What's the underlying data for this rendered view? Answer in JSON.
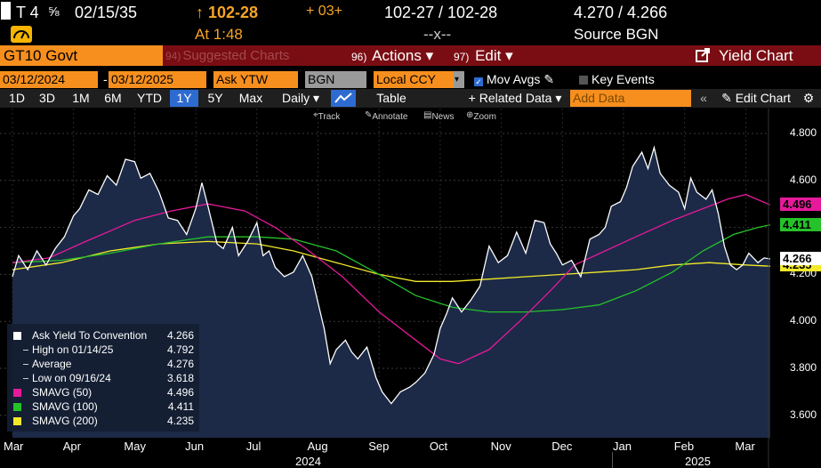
{
  "quote": {
    "ticker": "T 4",
    "coupon_frac": "⅝",
    "maturity": "02/15/35",
    "price": "102-28",
    "change": "+ 03+",
    "bid_ask": "102-27 / 102-28",
    "yields": "4.270 / 4.266",
    "time": "At 1:48",
    "mid_sep": "--x--",
    "source": "Source BGN"
  },
  "function_bar": {
    "security": "GT10 Govt",
    "suggested": "Suggested Charts",
    "actions_num": "96)",
    "actions": "Actions",
    "edit_num": "97)",
    "edit": "Edit",
    "title": "Yield Chart"
  },
  "controls": {
    "start_date": "03/12/2024",
    "dash": "-",
    "end_date": "03/12/2025",
    "field": "Ask YTW",
    "source": "BGN",
    "currency": "Local CCY",
    "mov_avgs": "Mov Avgs",
    "key_events": "Key Events"
  },
  "toolbar": {
    "periods": [
      "1D",
      "3D",
      "1M",
      "6M",
      "YTD",
      "1Y",
      "5Y",
      "Max"
    ],
    "selected_period": "1Y",
    "frequency": "Daily",
    "table": "Table",
    "related": "+ Related Data",
    "add_data_placeholder": "Add Data",
    "edit_chart": "Edit Chart"
  },
  "mini_tools": [
    "Track",
    "Annotate",
    "News",
    "Zoom"
  ],
  "legend": [
    {
      "name": "Ask Yield To Convention",
      "value": "4.266",
      "color": "#ffffff"
    },
    {
      "name": "High on 01/14/25",
      "value": "4.792",
      "color": "#ffffff"
    },
    {
      "name": "Average",
      "value": "4.276",
      "color": "#ffffff"
    },
    {
      "name": "Low on 09/16/24",
      "value": "3.618",
      "color": "#ffffff"
    },
    {
      "name": "SMAVG (50)",
      "value": "4.496",
      "color": "#e6199b"
    },
    {
      "name": "SMAVG (100)",
      "value": "4.411",
      "color": "#25c22a"
    },
    {
      "name": "SMAVG (200)",
      "value": "4.235",
      "color": "#f3ea2a"
    }
  ],
  "axis": {
    "y_ticks": [
      "4.800",
      "4.600",
      "4.400",
      "4.200",
      "4.000",
      "3.800",
      "3.600"
    ],
    "months": [
      "Mar",
      "Apr",
      "May",
      "Jun",
      "Jul",
      "Aug",
      "Sep",
      "Oct",
      "Nov",
      "Dec",
      "Jan",
      "Feb",
      "Mar"
    ],
    "years": [
      "2024",
      "2025"
    ],
    "last_labels": {
      "smavg50": "4.496",
      "smavg100": "4.411",
      "yield": "4.266",
      "smavg200": "4.235"
    }
  },
  "chart_data": {
    "type": "line",
    "x_unit": "months (0 = Mar 2024)",
    "ylim": [
      3.55,
      4.85
    ],
    "colors": {
      "yield": "#ffffff",
      "fill": "#1c2a47",
      "smavg50": "#e6199b",
      "smavg100": "#25c22a",
      "smavg200": "#f3ea2a"
    },
    "series": [
      {
        "name": "Ask Yield To Convention",
        "key": "yield",
        "points": [
          [
            0.0,
            4.19
          ],
          [
            0.1,
            4.28
          ],
          [
            0.25,
            4.22
          ],
          [
            0.4,
            4.3
          ],
          [
            0.55,
            4.24
          ],
          [
            0.7,
            4.31
          ],
          [
            0.85,
            4.36
          ],
          [
            1.0,
            4.45
          ],
          [
            1.1,
            4.48
          ],
          [
            1.25,
            4.56
          ],
          [
            1.4,
            4.54
          ],
          [
            1.55,
            4.62
          ],
          [
            1.7,
            4.58
          ],
          [
            1.85,
            4.69
          ],
          [
            2.0,
            4.68
          ],
          [
            2.1,
            4.61
          ],
          [
            2.25,
            4.63
          ],
          [
            2.4,
            4.55
          ],
          [
            2.55,
            4.44
          ],
          [
            2.7,
            4.43
          ],
          [
            2.85,
            4.37
          ],
          [
            3.0,
            4.48
          ],
          [
            3.1,
            4.59
          ],
          [
            3.2,
            4.49
          ],
          [
            3.35,
            4.33
          ],
          [
            3.45,
            4.31
          ],
          [
            3.6,
            4.4
          ],
          [
            3.7,
            4.28
          ],
          [
            3.85,
            4.34
          ],
          [
            4.0,
            4.42
          ],
          [
            4.1,
            4.28
          ],
          [
            4.2,
            4.3
          ],
          [
            4.3,
            4.23
          ],
          [
            4.45,
            4.19
          ],
          [
            4.6,
            4.21
          ],
          [
            4.75,
            4.28
          ],
          [
            4.9,
            4.19
          ],
          [
            5.0,
            4.08
          ],
          [
            5.1,
            3.97
          ],
          [
            5.2,
            3.82
          ],
          [
            5.3,
            3.88
          ],
          [
            5.45,
            3.92
          ],
          [
            5.55,
            3.87
          ],
          [
            5.65,
            3.84
          ],
          [
            5.8,
            3.89
          ],
          [
            5.95,
            3.76
          ],
          [
            6.05,
            3.7
          ],
          [
            6.2,
            3.65
          ],
          [
            6.35,
            3.7
          ],
          [
            6.5,
            3.72
          ],
          [
            6.6,
            3.74
          ],
          [
            6.75,
            3.78
          ],
          [
            6.9,
            3.86
          ],
          [
            7.0,
            3.97
          ],
          [
            7.1,
            4.03
          ],
          [
            7.2,
            4.1
          ],
          [
            7.35,
            4.04
          ],
          [
            7.5,
            4.09
          ],
          [
            7.65,
            4.15
          ],
          [
            7.8,
            4.32
          ],
          [
            7.95,
            4.25
          ],
          [
            8.1,
            4.28
          ],
          [
            8.25,
            4.38
          ],
          [
            8.4,
            4.29
          ],
          [
            8.55,
            4.43
          ],
          [
            8.7,
            4.42
          ],
          [
            8.8,
            4.33
          ],
          [
            8.9,
            4.29
          ],
          [
            9.0,
            4.24
          ],
          [
            9.15,
            4.26
          ],
          [
            9.3,
            4.19
          ],
          [
            9.45,
            4.35
          ],
          [
            9.6,
            4.37
          ],
          [
            9.7,
            4.4
          ],
          [
            9.8,
            4.49
          ],
          [
            9.95,
            4.51
          ],
          [
            10.05,
            4.57
          ],
          [
            10.15,
            4.66
          ],
          [
            10.3,
            4.72
          ],
          [
            10.4,
            4.65
          ],
          [
            10.5,
            4.74
          ],
          [
            10.6,
            4.63
          ],
          [
            10.75,
            4.58
          ],
          [
            10.9,
            4.55
          ],
          [
            11.0,
            4.48
          ],
          [
            11.1,
            4.61
          ],
          [
            11.2,
            4.55
          ],
          [
            11.35,
            4.52
          ],
          [
            11.45,
            4.56
          ],
          [
            11.55,
            4.46
          ],
          [
            11.65,
            4.32
          ],
          [
            11.75,
            4.24
          ],
          [
            11.85,
            4.22
          ],
          [
            11.95,
            4.24
          ],
          [
            12.05,
            4.29
          ],
          [
            12.2,
            4.25
          ],
          [
            12.3,
            4.27
          ],
          [
            12.4,
            4.266
          ]
        ]
      },
      {
        "name": "SMAVG (50)",
        "key": "smavg50",
        "points": [
          [
            0.0,
            4.25
          ],
          [
            0.6,
            4.27
          ],
          [
            1.2,
            4.34
          ],
          [
            2.0,
            4.43
          ],
          [
            2.6,
            4.47
          ],
          [
            3.2,
            4.5
          ],
          [
            3.8,
            4.47
          ],
          [
            4.3,
            4.4
          ],
          [
            4.8,
            4.31
          ],
          [
            5.4,
            4.19
          ],
          [
            6.0,
            4.04
          ],
          [
            6.6,
            3.92
          ],
          [
            7.0,
            3.84
          ],
          [
            7.3,
            3.82
          ],
          [
            7.8,
            3.88
          ],
          [
            8.3,
            4.0
          ],
          [
            8.8,
            4.13
          ],
          [
            9.2,
            4.24
          ],
          [
            9.7,
            4.3
          ],
          [
            10.2,
            4.36
          ],
          [
            10.8,
            4.43
          ],
          [
            11.3,
            4.48
          ],
          [
            11.7,
            4.52
          ],
          [
            12.0,
            4.54
          ],
          [
            12.4,
            4.496
          ]
        ]
      },
      {
        "name": "SMAVG (100)",
        "key": "smavg100",
        "points": [
          [
            0.0,
            4.25
          ],
          [
            0.8,
            4.26
          ],
          [
            1.6,
            4.29
          ],
          [
            2.4,
            4.33
          ],
          [
            3.2,
            4.36
          ],
          [
            4.0,
            4.36
          ],
          [
            4.6,
            4.35
          ],
          [
            5.3,
            4.3
          ],
          [
            6.0,
            4.2
          ],
          [
            6.6,
            4.11
          ],
          [
            7.2,
            4.06
          ],
          [
            7.8,
            4.04
          ],
          [
            8.4,
            4.04
          ],
          [
            9.0,
            4.05
          ],
          [
            9.6,
            4.07
          ],
          [
            10.2,
            4.13
          ],
          [
            10.8,
            4.21
          ],
          [
            11.3,
            4.3
          ],
          [
            11.8,
            4.37
          ],
          [
            12.2,
            4.4
          ],
          [
            12.4,
            4.411
          ]
        ]
      },
      {
        "name": "SMAVG (200)",
        "key": "smavg200",
        "points": [
          [
            0.0,
            4.22
          ],
          [
            0.8,
            4.25
          ],
          [
            1.6,
            4.3
          ],
          [
            2.4,
            4.33
          ],
          [
            3.2,
            4.34
          ],
          [
            4.0,
            4.33
          ],
          [
            4.6,
            4.3
          ],
          [
            5.3,
            4.25
          ],
          [
            6.0,
            4.2
          ],
          [
            6.6,
            4.17
          ],
          [
            7.2,
            4.17
          ],
          [
            7.8,
            4.18
          ],
          [
            8.4,
            4.19
          ],
          [
            9.0,
            4.2
          ],
          [
            9.6,
            4.21
          ],
          [
            10.2,
            4.22
          ],
          [
            10.8,
            4.24
          ],
          [
            11.4,
            4.25
          ],
          [
            12.0,
            4.24
          ],
          [
            12.4,
            4.235
          ]
        ]
      }
    ]
  }
}
